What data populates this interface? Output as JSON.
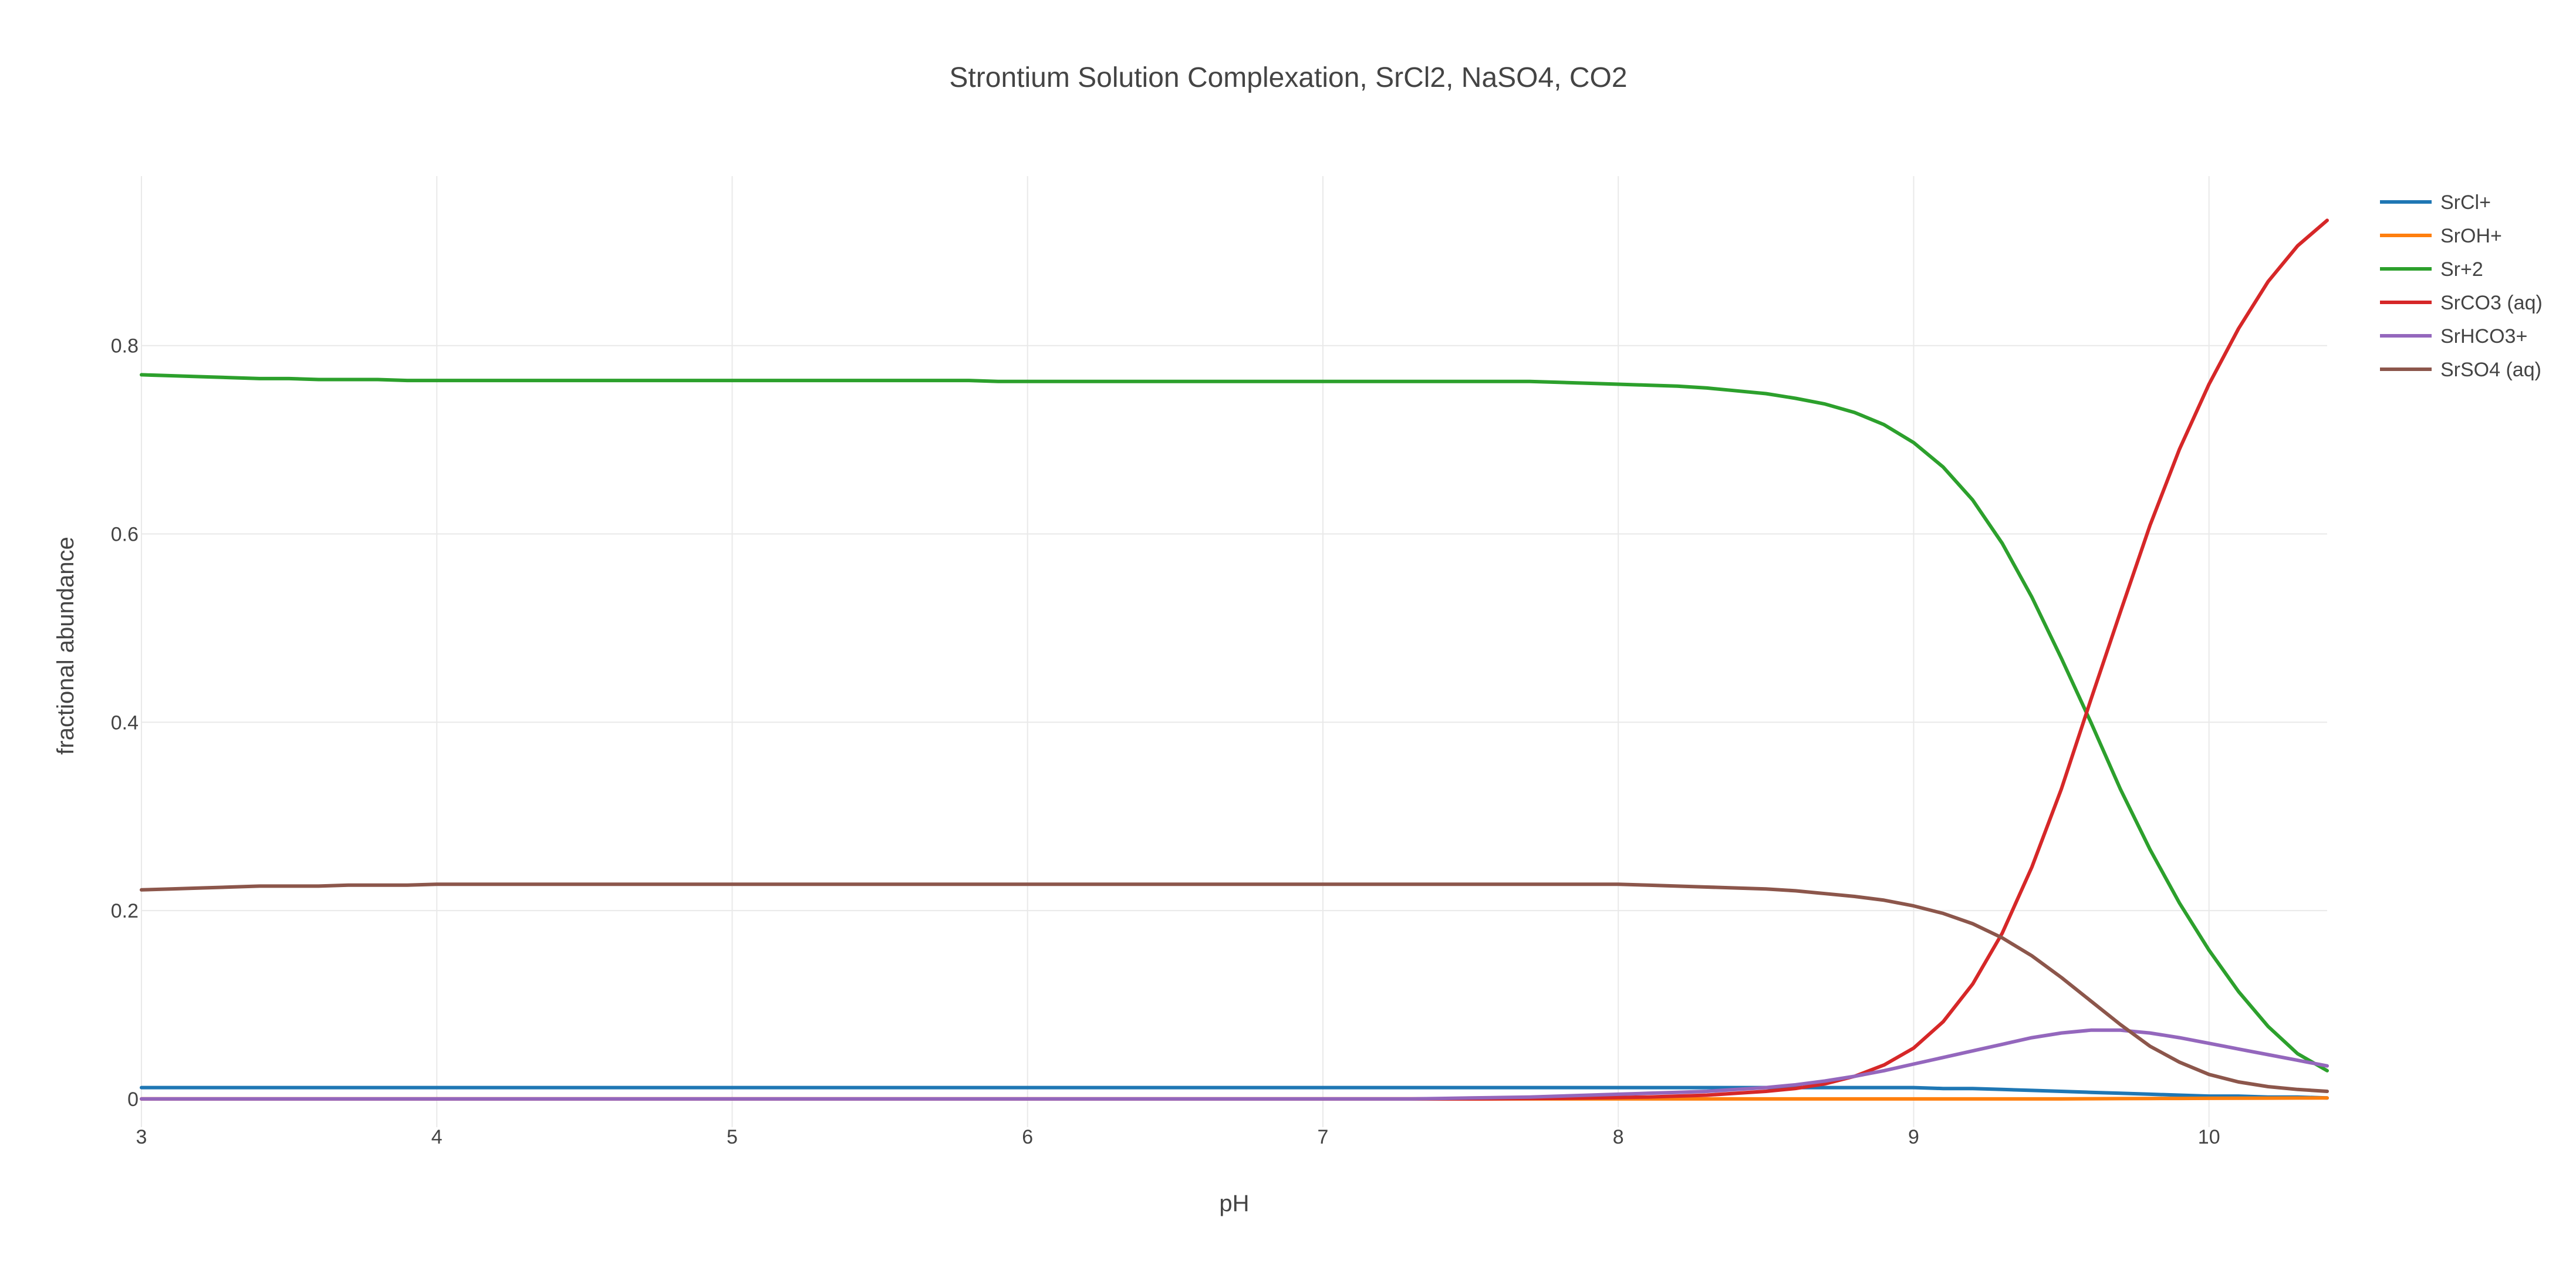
{
  "chart_data": {
    "type": "line",
    "title": "Strontium Solution Complexation, SrCl2, NaSO4, CO2",
    "xlabel": "pH",
    "ylabel": "fractional abundance",
    "xlim": [
      3,
      10.4
    ],
    "ylim": [
      -0.03,
      0.98
    ],
    "xticks": [
      3,
      4,
      5,
      6,
      7,
      8,
      9,
      10
    ],
    "xtick_labels": [
      "3",
      "4",
      "5",
      "6",
      "7",
      "8",
      "9",
      "10"
    ],
    "yticks": [
      0,
      0.2,
      0.4,
      0.6,
      0.8
    ],
    "ytick_labels": [
      "0",
      "0.2",
      "0.4",
      "0.6",
      "0.8"
    ],
    "grid": true,
    "legend_position": "top-right",
    "x": [
      3,
      3.1,
      3.2,
      3.3,
      3.4,
      3.5,
      3.6,
      3.7,
      3.8,
      3.9,
      4,
      4.1,
      4.2,
      4.3,
      4.4,
      4.5,
      4.6,
      4.7,
      4.8,
      4.9,
      5,
      5.1,
      5.2,
      5.3,
      5.4,
      5.5,
      5.6,
      5.7,
      5.8,
      5.9,
      6,
      6.1,
      6.2,
      6.3,
      6.4,
      6.5,
      6.6,
      6.7,
      6.8,
      6.9,
      7,
      7.1,
      7.2,
      7.3,
      7.4,
      7.5,
      7.6,
      7.7,
      7.8,
      7.9,
      8,
      8.1,
      8.2,
      8.3,
      8.4,
      8.5,
      8.6,
      8.7,
      8.8,
      8.9,
      9,
      9.1,
      9.2,
      9.3,
      9.4,
      9.5,
      9.6,
      9.7,
      9.8,
      9.9,
      10,
      10.1,
      10.2,
      10.3,
      10.4
    ],
    "series": [
      {
        "name": "SrCl+",
        "color": "#1f77b4",
        "values": [
          0.012,
          0.012,
          0.012,
          0.012,
          0.012,
          0.012,
          0.012,
          0.012,
          0.012,
          0.012,
          0.012,
          0.012,
          0.012,
          0.012,
          0.012,
          0.012,
          0.012,
          0.012,
          0.012,
          0.012,
          0.012,
          0.012,
          0.012,
          0.012,
          0.012,
          0.012,
          0.012,
          0.012,
          0.012,
          0.012,
          0.012,
          0.012,
          0.012,
          0.012,
          0.012,
          0.012,
          0.012,
          0.012,
          0.012,
          0.012,
          0.012,
          0.012,
          0.012,
          0.012,
          0.012,
          0.012,
          0.012,
          0.012,
          0.012,
          0.012,
          0.012,
          0.012,
          0.012,
          0.012,
          0.012,
          0.012,
          0.012,
          0.012,
          0.012,
          0.012,
          0.012,
          0.011,
          0.011,
          0.01,
          0.009,
          0.008,
          0.007,
          0.006,
          0.005,
          0.004,
          0.003,
          0.003,
          0.002,
          0.002,
          0.001
        ]
      },
      {
        "name": "SrOH+",
        "color": "#ff7f0e",
        "values": [
          0,
          0,
          0,
          0,
          0,
          0,
          0,
          0,
          0,
          0,
          0,
          0,
          0,
          0,
          0,
          0,
          0,
          0,
          0,
          0,
          0,
          0,
          0,
          0,
          0,
          0,
          0,
          0,
          0,
          0,
          0,
          0,
          0,
          0,
          0,
          0,
          0,
          0,
          0,
          0,
          0,
          0,
          0,
          0,
          0,
          0,
          0,
          0,
          0,
          0,
          0,
          0,
          0,
          0,
          0,
          0,
          0,
          0,
          0,
          0,
          0,
          0,
          0,
          0,
          0,
          0,
          0.0002,
          0.0003,
          0.0004,
          0.0005,
          0.0006,
          0.0007,
          0.0008,
          0.0009,
          0.001
        ]
      },
      {
        "name": "Sr+2",
        "color": "#2ca02c",
        "values": [
          0.769,
          0.768,
          0.767,
          0.766,
          0.765,
          0.765,
          0.764,
          0.764,
          0.764,
          0.763,
          0.763,
          0.763,
          0.763,
          0.763,
          0.763,
          0.763,
          0.763,
          0.763,
          0.763,
          0.763,
          0.763,
          0.763,
          0.763,
          0.763,
          0.763,
          0.763,
          0.763,
          0.763,
          0.763,
          0.762,
          0.762,
          0.762,
          0.762,
          0.762,
          0.762,
          0.762,
          0.762,
          0.762,
          0.762,
          0.762,
          0.762,
          0.762,
          0.762,
          0.762,
          0.762,
          0.762,
          0.762,
          0.762,
          0.761,
          0.76,
          0.759,
          0.758,
          0.757,
          0.755,
          0.752,
          0.749,
          0.744,
          0.738,
          0.729,
          0.716,
          0.697,
          0.671,
          0.636,
          0.59,
          0.533,
          0.468,
          0.4,
          0.329,
          0.265,
          0.208,
          0.158,
          0.114,
          0.077,
          0.048,
          0.03
        ]
      },
      {
        "name": "SrCO3 (aq)",
        "color": "#d62728",
        "values": [
          0,
          0,
          0,
          0,
          0,
          0,
          0,
          0,
          0,
          0,
          0,
          0,
          0,
          0,
          0,
          0,
          0,
          0,
          0,
          0,
          0,
          0,
          0,
          0,
          0,
          0,
          0,
          0,
          0,
          0,
          0,
          0,
          0,
          0,
          0,
          0,
          0,
          0,
          0,
          0,
          0,
          0,
          0,
          0,
          0,
          0,
          0.0002,
          0.0004,
          0.0006,
          0.001,
          0.0015,
          0.002,
          0.003,
          0.004,
          0.006,
          0.008,
          0.011,
          0.016,
          0.024,
          0.036,
          0.054,
          0.082,
          0.122,
          0.176,
          0.246,
          0.329,
          0.424,
          0.517,
          0.609,
          0.69,
          0.759,
          0.818,
          0.868,
          0.906,
          0.933
        ]
      },
      {
        "name": "SrHCO3+",
        "color": "#9467bd",
        "values": [
          0,
          0,
          0,
          0,
          0,
          0,
          0,
          0,
          0,
          0,
          0,
          0,
          0,
          0,
          0,
          0,
          0,
          0,
          0,
          0,
          0,
          0,
          0,
          0,
          0,
          0,
          0,
          0,
          0,
          0,
          0,
          0,
          0,
          0,
          0,
          0,
          0,
          0,
          0,
          0,
          0,
          0,
          0,
          0,
          0.0005,
          0.001,
          0.0015,
          0.002,
          0.003,
          0.004,
          0.005,
          0.006,
          0.007,
          0.008,
          0.01,
          0.012,
          0.015,
          0.019,
          0.024,
          0.03,
          0.037,
          0.044,
          0.051,
          0.058,
          0.065,
          0.07,
          0.073,
          0.073,
          0.07,
          0.065,
          0.059,
          0.053,
          0.047,
          0.041,
          0.035
        ]
      },
      {
        "name": "SrSO4 (aq)",
        "color": "#8c564b",
        "values": [
          0.222,
          0.223,
          0.224,
          0.225,
          0.226,
          0.226,
          0.226,
          0.227,
          0.227,
          0.227,
          0.228,
          0.228,
          0.228,
          0.228,
          0.228,
          0.228,
          0.228,
          0.228,
          0.228,
          0.228,
          0.228,
          0.228,
          0.228,
          0.228,
          0.228,
          0.228,
          0.228,
          0.228,
          0.228,
          0.228,
          0.228,
          0.228,
          0.228,
          0.228,
          0.228,
          0.228,
          0.228,
          0.228,
          0.228,
          0.228,
          0.228,
          0.228,
          0.228,
          0.228,
          0.228,
          0.228,
          0.228,
          0.228,
          0.228,
          0.228,
          0.228,
          0.227,
          0.226,
          0.225,
          0.224,
          0.223,
          0.221,
          0.218,
          0.215,
          0.211,
          0.205,
          0.197,
          0.186,
          0.171,
          0.152,
          0.129,
          0.104,
          0.079,
          0.056,
          0.039,
          0.026,
          0.018,
          0.013,
          0.01,
          0.008
        ]
      }
    ]
  }
}
